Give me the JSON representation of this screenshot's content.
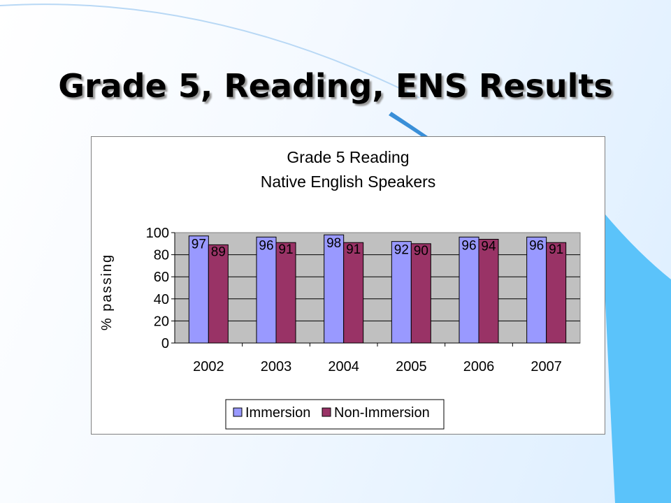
{
  "slide": {
    "title": "Grade 5, Reading, ENS Results"
  },
  "colors": {
    "series_1": "#9999ff",
    "series_2": "#993366",
    "plot_background": "#c0c0c0",
    "deco_blue": "#5bc3fa"
  },
  "chart_data": {
    "type": "bar",
    "title": "Grade 5 Reading",
    "subtitle": "Native English Speakers",
    "xlabel": "",
    "ylabel": "% passing",
    "categories": [
      "2002",
      "2003",
      "2004",
      "2005",
      "2006",
      "2007"
    ],
    "series": [
      {
        "name": "Immersion",
        "values": [
          97,
          96,
          98,
          92,
          96,
          96
        ]
      },
      {
        "name": "Non-Immersion",
        "values": [
          89,
          91,
          91,
          90,
          94,
          91
        ]
      }
    ],
    "ylim": [
      0,
      100
    ],
    "yticks": [
      "0",
      "20",
      "40",
      "60",
      "80",
      "100"
    ],
    "grid": true,
    "legend": "bottom",
    "data_labels": true
  }
}
